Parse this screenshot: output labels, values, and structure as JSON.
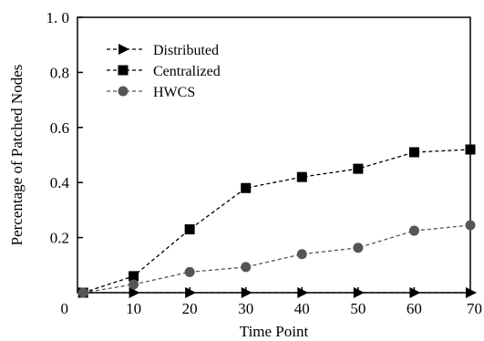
{
  "chart_data": {
    "type": "line",
    "xlabel": "Time Point",
    "ylabel": "Percentage of Patched Nodes",
    "xlim": [
      0,
      70
    ],
    "ylim": [
      0,
      1.0
    ],
    "x_ticks": [
      {
        "value": 0,
        "label": "0"
      },
      {
        "value": 10,
        "label": "10"
      },
      {
        "value": 20,
        "label": "20"
      },
      {
        "value": 30,
        "label": "30"
      },
      {
        "value": 40,
        "label": "40"
      },
      {
        "value": 50,
        "label": "50"
      },
      {
        "value": 60,
        "label": "60"
      },
      {
        "value": 70,
        "label": "70"
      }
    ],
    "y_ticks": [
      {
        "value": 0.2,
        "label": "0.2"
      },
      {
        "value": 0.4,
        "label": "0.4"
      },
      {
        "value": 0.6,
        "label": "0.6"
      },
      {
        "value": 0.8,
        "label": "0.8"
      },
      {
        "value": 1.0,
        "label": "1. 0"
      }
    ],
    "grid": false,
    "legend_position": "top-left",
    "x": [
      1,
      10,
      20,
      30,
      40,
      50,
      60,
      70
    ],
    "series": [
      {
        "name": "Distributed",
        "marker": "triangle-right",
        "color": "#000000",
        "values": [
          0.0,
          0.0,
          0.0,
          0.0,
          0.0,
          0.0,
          0.0,
          0.0
        ]
      },
      {
        "name": "Centralized",
        "marker": "square",
        "color": "#000000",
        "values": [
          0.0,
          0.06,
          0.23,
          0.38,
          0.42,
          0.45,
          0.51,
          0.52
        ]
      },
      {
        "name": "HWCS",
        "marker": "circle",
        "color": "#555555",
        "values": [
          0.0,
          0.03,
          0.075,
          0.093,
          0.14,
          0.163,
          0.225,
          0.245
        ]
      }
    ]
  }
}
